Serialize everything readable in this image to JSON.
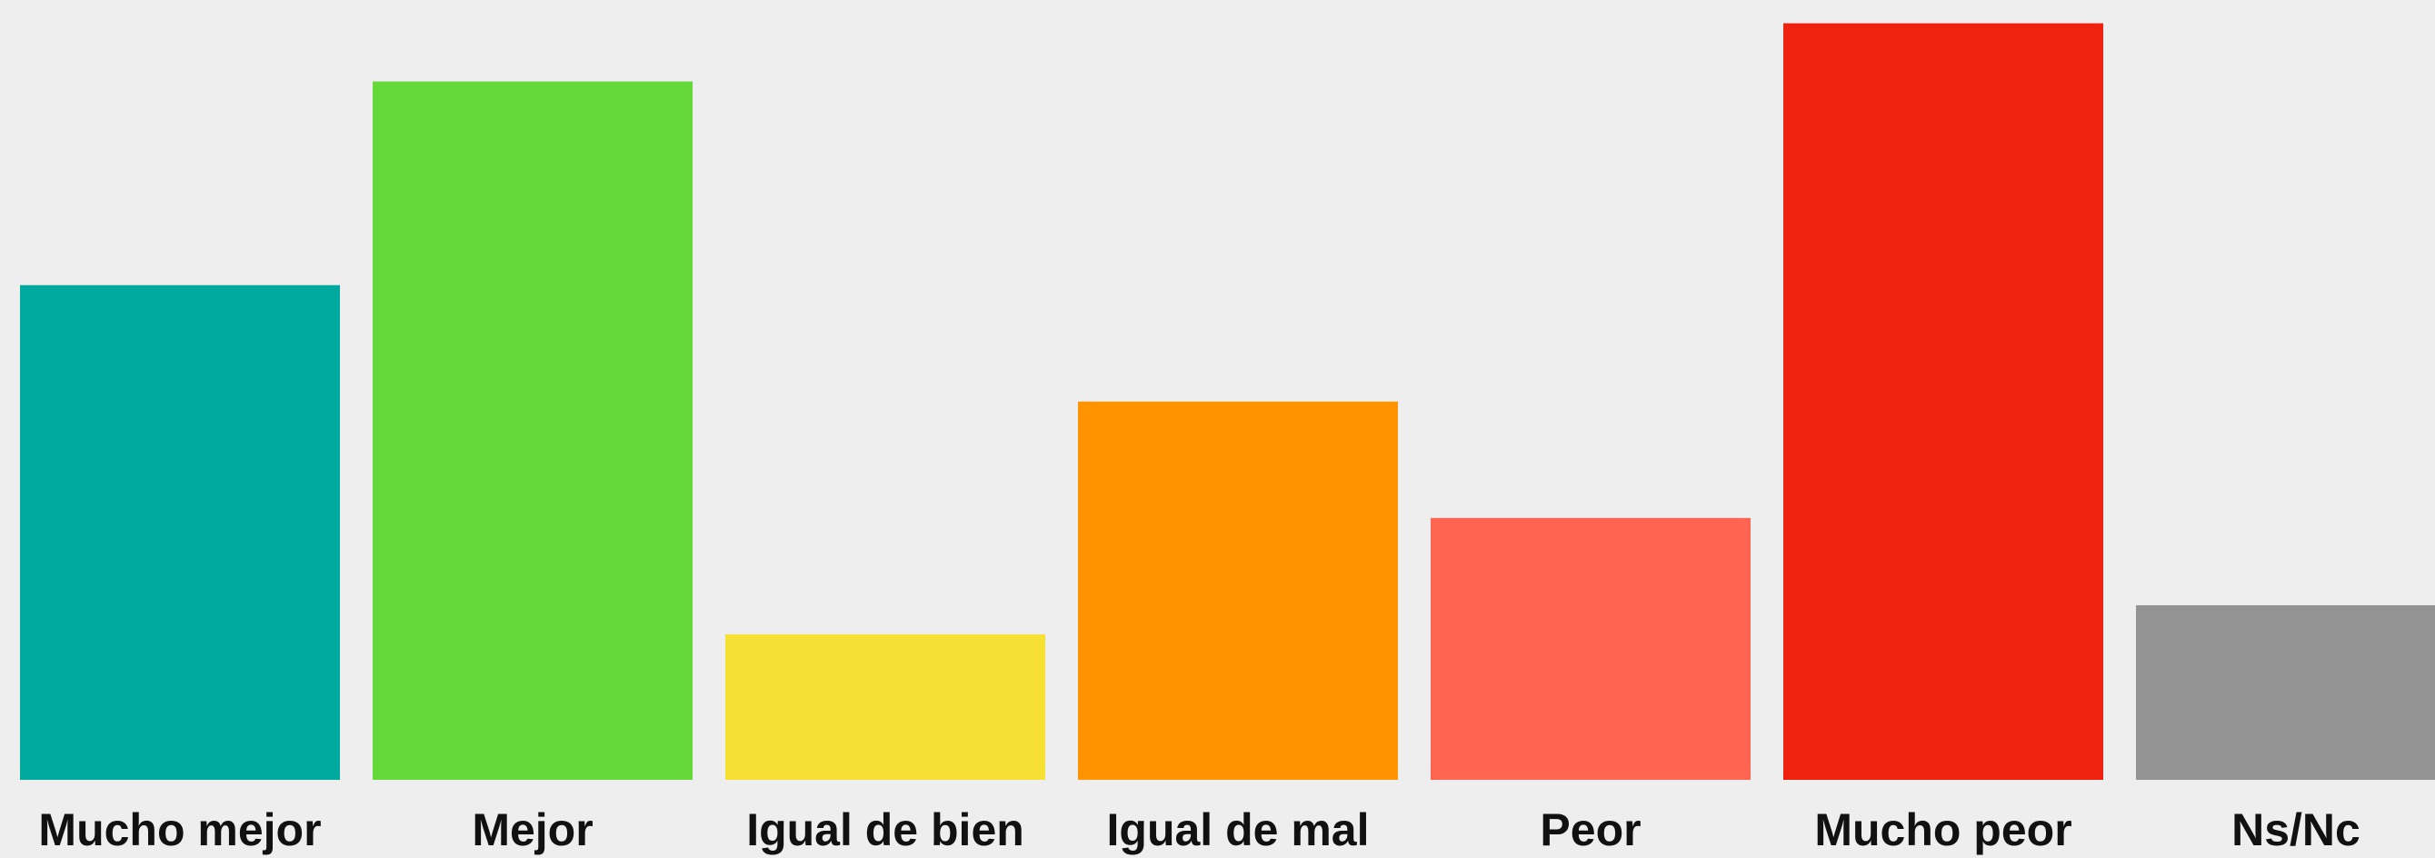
{
  "chart_data": {
    "type": "bar",
    "categories": [
      "Mucho mejor",
      "Mejor",
      "Igual de bien",
      "Igual de mal",
      "Peor",
      "Mucho peor",
      "Ns/Nc"
    ],
    "values": [
      17,
      24,
      5,
      13,
      9,
      26,
      6
    ],
    "colors": [
      "#00a99d",
      "#64d939",
      "#f7e034",
      "#ff9400",
      "#ff6550",
      "#ee220f",
      "#939393"
    ],
    "ylim": [
      0,
      26.8
    ]
  }
}
